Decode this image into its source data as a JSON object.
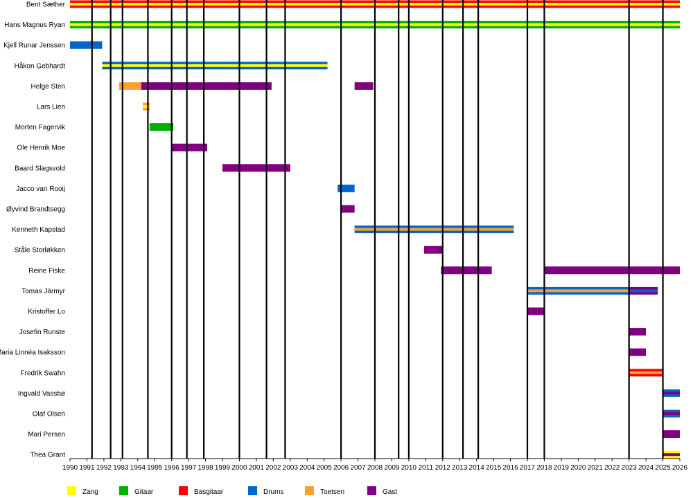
{
  "chart_data": {
    "type": "timeline",
    "x_start": 1990,
    "x_end": 2026,
    "year_labels": [
      "1990",
      "1991",
      "1992",
      "1993",
      "1994",
      "1995",
      "1996",
      "1997",
      "1998",
      "1999",
      "2000",
      "2001",
      "2002",
      "2003",
      "2004",
      "2005",
      "2006",
      "2007",
      "2008",
      "2009",
      "2010",
      "2011",
      "2012",
      "2013",
      "2014",
      "2015",
      "2016",
      "2017",
      "2018",
      "2019",
      "2020",
      "2021",
      "2022",
      "2023",
      "2024",
      "2025",
      "2026"
    ],
    "colors": {
      "Zang": "#ffff00",
      "Gitaar": "#00b000",
      "Basgitaar": "#ff0000",
      "Drums": "#0066cc",
      "Toetsen": "#ffa030",
      "Gast": "#800080"
    },
    "legend": [
      "Zang",
      "Gitaar",
      "Basgitaar",
      "Drums",
      "Toetsen",
      "Gast"
    ],
    "events": [
      1991.3,
      1992.4,
      1993.1,
      1994.6,
      1996.0,
      1996.9,
      1997.9,
      2000.0,
      2001.6,
      2002.7,
      2006.0,
      2008.0,
      2009.4,
      2010.0,
      2012.0,
      2013.2,
      2014.1,
      2017.0,
      2018.0,
      2023.0,
      2025.0
    ],
    "members": [
      {
        "name": "Bent Sæther",
        "segments": [
          {
            "start": 1990.0,
            "end": 2026.0,
            "roles": [
              "Basgitaar",
              "Zang"
            ]
          }
        ]
      },
      {
        "name": "Hans Magnus Ryan",
        "segments": [
          {
            "start": 1990.0,
            "end": 2026.0,
            "roles": [
              "Gitaar",
              "Zang"
            ]
          }
        ]
      },
      {
        "name": "Kjell Runar Jenssen",
        "segments": [
          {
            "start": 1990.0,
            "end": 1991.9,
            "roles": [
              "Drums"
            ]
          }
        ]
      },
      {
        "name": "Håkon Gebhardt",
        "segments": [
          {
            "start": 1991.9,
            "end": 2005.2,
            "roles": [
              "Drums",
              "Zang"
            ]
          }
        ]
      },
      {
        "name": "Helge Sten",
        "segments": [
          {
            "start": 1992.9,
            "end": 1994.2,
            "roles": [
              "Toetsen"
            ]
          },
          {
            "start": 1994.2,
            "end": 2001.9,
            "roles": [
              "Gast"
            ]
          },
          {
            "start": 2006.8,
            "end": 2007.9,
            "roles": [
              "Gast"
            ]
          }
        ]
      },
      {
        "name": "Lars Lien",
        "segments": [
          {
            "start": 1994.3,
            "end": 1994.7,
            "roles": [
              "Toetsen",
              "Zang"
            ]
          }
        ]
      },
      {
        "name": "Morten Fagervik",
        "segments": [
          {
            "start": 1994.7,
            "end": 1996.1,
            "roles": [
              "Gitaar"
            ]
          }
        ]
      },
      {
        "name": "Ole Henrik Moe",
        "segments": [
          {
            "start": 1996.0,
            "end": 1998.1,
            "roles": [
              "Gast"
            ]
          }
        ]
      },
      {
        "name": "Baard Slagsvold",
        "segments": [
          {
            "start": 1999.0,
            "end": 2003.0,
            "roles": [
              "Gast"
            ]
          }
        ]
      },
      {
        "name": "Jacco van Rooij",
        "segments": [
          {
            "start": 2005.8,
            "end": 2006.8,
            "roles": [
              "Drums"
            ]
          }
        ]
      },
      {
        "name": "Øyvind Brandtsegg",
        "segments": [
          {
            "start": 2006.0,
            "end": 2006.8,
            "roles": [
              "Gast"
            ]
          }
        ]
      },
      {
        "name": "Kenneth Kapstad",
        "segments": [
          {
            "start": 2006.8,
            "end": 2016.2,
            "roles": [
              "Drums",
              "Toetsen"
            ]
          }
        ]
      },
      {
        "name": "Ståle Storløkken",
        "segments": [
          {
            "start": 2010.9,
            "end": 2012.0,
            "roles": [
              "Gast"
            ]
          }
        ]
      },
      {
        "name": "Reine Fiske",
        "segments": [
          {
            "start": 2011.9,
            "end": 2014.9,
            "roles": [
              "Gast"
            ]
          },
          {
            "start": 2018.0,
            "end": 2026.0,
            "roles": [
              "Gast"
            ]
          }
        ]
      },
      {
        "name": "Tomas Järmyr",
        "segments": [
          {
            "start": 2017.0,
            "end": 2023.0,
            "roles": [
              "Drums",
              "Toetsen"
            ]
          },
          {
            "start": 2023.0,
            "end": 2024.7,
            "roles": [
              "Gast",
              "Drums"
            ]
          }
        ]
      },
      {
        "name": "Kristoffer Lo",
        "segments": [
          {
            "start": 2017.0,
            "end": 2018.0,
            "roles": [
              "Gast"
            ]
          }
        ]
      },
      {
        "name": "Josefin Runste",
        "segments": [
          {
            "start": 2023.0,
            "end": 2024.0,
            "roles": [
              "Gast"
            ]
          }
        ]
      },
      {
        "name": "Maria Linnéa Isaksson",
        "segments": [
          {
            "start": 2023.0,
            "end": 2024.0,
            "roles": [
              "Gast"
            ]
          }
        ]
      },
      {
        "name": "Fredrik Swahn",
        "segments": [
          {
            "start": 2023.0,
            "end": 2025.0,
            "roles": [
              "Basgitaar",
              "Toetsen"
            ]
          }
        ]
      },
      {
        "name": "Ingvald Vassbø",
        "segments": [
          {
            "start": 2025.0,
            "end": 2026.0,
            "roles": [
              "Drums",
              "Gast"
            ]
          }
        ]
      },
      {
        "name": "Olaf Olsen",
        "segments": [
          {
            "start": 2025.0,
            "end": 2026.0,
            "roles": [
              "Drums",
              "Gast"
            ]
          }
        ]
      },
      {
        "name": "Mari Persen",
        "segments": [
          {
            "start": 2025.0,
            "end": 2026.0,
            "roles": [
              "Gast"
            ]
          }
        ]
      },
      {
        "name": "Thea Grant",
        "segments": [
          {
            "start": 2025.0,
            "end": 2026.0,
            "roles": [
              "Zang",
              "Gast"
            ]
          }
        ]
      }
    ]
  }
}
